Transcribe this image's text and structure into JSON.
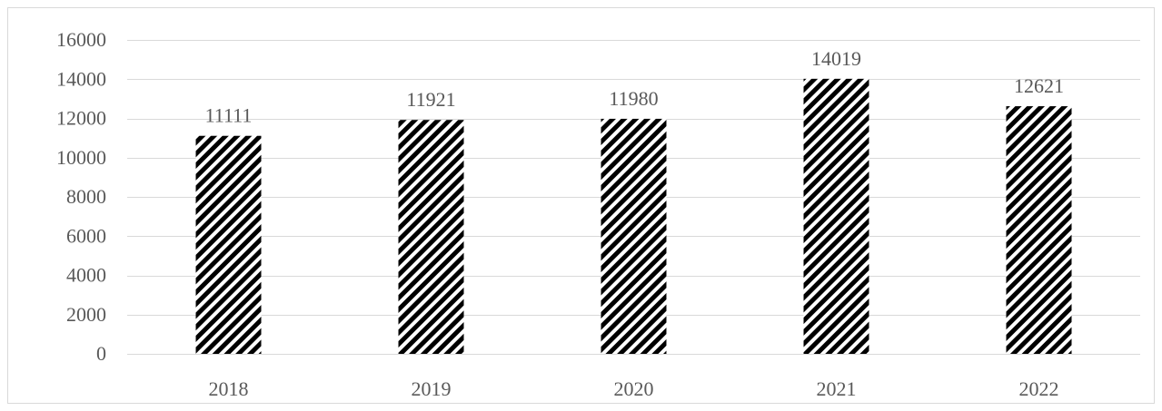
{
  "chart_data": {
    "type": "bar",
    "title": "",
    "xlabel": "",
    "ylabel": "",
    "categories": [
      "2018",
      "2019",
      "2020",
      "2021",
      "2022"
    ],
    "values": [
      11111,
      11921,
      11980,
      14019,
      12621
    ],
    "data_labels": [
      "11111",
      "11921",
      "11980",
      "14019",
      "12621"
    ],
    "ylim": [
      0,
      16000
    ],
    "y_ticks": [
      0,
      2000,
      4000,
      6000,
      8000,
      10000,
      12000,
      14000,
      16000
    ],
    "y_tick_labels": [
      "0",
      "2000",
      "4000",
      "6000",
      "8000",
      "10000",
      "12000",
      "14000",
      "16000"
    ],
    "grid": true,
    "legend": "none",
    "bar_fill": "diagonal-hatch",
    "colors": {
      "bar_stripe": "#000000",
      "bar_background": "#ffffff",
      "gridline": "#d9d9d9",
      "axis_line": "#d9d9d9",
      "label_text": "#595959",
      "border": "#d9d9d9"
    }
  }
}
